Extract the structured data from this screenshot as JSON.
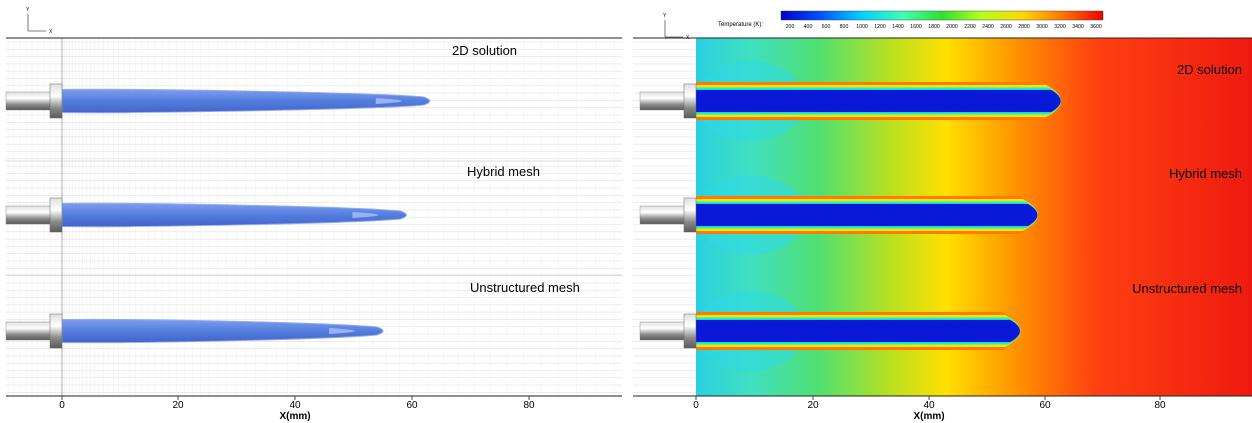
{
  "left_panel": {
    "panel_titles": [
      "2D solution",
      "Hybrid mesh",
      "Unstructured mesh"
    ],
    "flame_lengths_mm": [
      64,
      60,
      56
    ],
    "x_ticks": [
      "0",
      "20",
      "40",
      "60",
      "80"
    ],
    "x_axis_label": "X(mm)",
    "axis_triad": {
      "y": "Y",
      "x": "X"
    }
  },
  "right_panel": {
    "panel_titles": [
      "2D solution",
      "Hybrid mesh",
      "Unstructured mesh"
    ],
    "core_lengths_mm": [
      64,
      60,
      57
    ],
    "x_ticks": [
      "0",
      "20",
      "40",
      "60",
      "80"
    ],
    "x_axis_label": "X(mm)",
    "axis_triad": {
      "y": "Y",
      "x": "X"
    },
    "legend": {
      "title": "Temperature (K):",
      "ticks": [
        "200",
        "400",
        "600",
        "800",
        "1000",
        "1200",
        "1400",
        "1600",
        "1800",
        "2000",
        "2200",
        "2400",
        "2600",
        "2800",
        "3000",
        "3200",
        "3400",
        "3600"
      ]
    }
  },
  "colors": {
    "blue_core": "#0a18d8",
    "iso_surface": "#5a86e0",
    "hot": "#ee1a10"
  }
}
